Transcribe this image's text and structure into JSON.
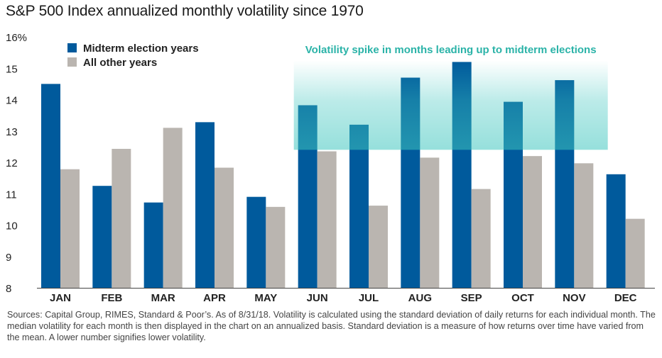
{
  "title": "S&P 500 Index annualized monthly volatility since 1970",
  "footnote": "Sources: Capital Group, RIMES, Standard & Poor’s. As of 8/31/18. Volatility is calculated using the standard deviation of daily returns for each individual month. The median volatility for each month is then displayed in the chart on an annualized basis. Standard deviation is a measure of how returns over time have varied from the mean. A lower number signifies lower volatility.",
  "colors": {
    "midterm": "#005a9c",
    "other": "#bab5b0",
    "highlight": "#3fc6bf",
    "highlight_text": "#2bb3a8"
  },
  "chart_data": {
    "type": "bar",
    "categories": [
      "JAN",
      "FEB",
      "MAR",
      "APR",
      "MAY",
      "JUN",
      "JUL",
      "AUG",
      "SEP",
      "OCT",
      "NOV",
      "DEC"
    ],
    "series": [
      {
        "name": "Midterm election years",
        "values": [
          14.5,
          11.25,
          10.72,
          13.28,
          10.9,
          13.82,
          13.2,
          14.7,
          15.2,
          13.93,
          14.62,
          11.62
        ]
      },
      {
        "name": "All other years",
        "values": [
          11.78,
          12.43,
          13.1,
          11.83,
          10.58,
          12.35,
          10.62,
          12.15,
          11.15,
          12.2,
          11.97,
          10.2
        ]
      }
    ],
    "ylim": [
      8,
      16
    ],
    "yticks": [
      8,
      9,
      10,
      11,
      12,
      13,
      14,
      15,
      16
    ],
    "ytick_labels": [
      "8",
      "9",
      "10",
      "11",
      "12",
      "13",
      "14",
      "15",
      "16%"
    ],
    "legend_position": "top-left",
    "annotation": {
      "text": "Volatility spike in months leading up to midterm elections",
      "from_category": "JUN",
      "to_category": "NOV",
      "y_range": [
        12.4,
        15.2
      ]
    }
  }
}
